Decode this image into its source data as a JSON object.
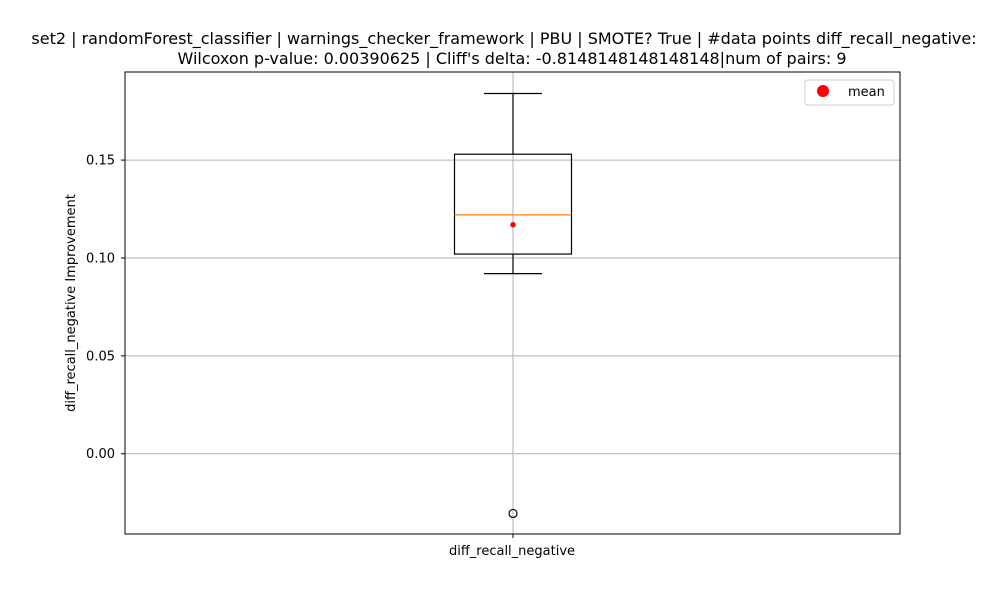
{
  "chart_data": {
    "type": "box",
    "title_lines": [
      "set2 | randomForest_classifier | warnings_checker_framework | PBU | SMOTE? True | #data points diff_recall_negative:",
      "Wilcoxon p-value: 0.00390625 | Cliff's delta: -0.8148148148148148|num of pairs: 9"
    ],
    "xlabel": "",
    "ylabel": "diff_recall_negative Improvement",
    "categories": [
      "diff_recall_negative"
    ],
    "ylim": [
      -0.041,
      0.195
    ],
    "yticks": [
      0.0,
      0.05,
      0.1,
      0.15
    ],
    "ytick_labels": [
      "0.00",
      "0.05",
      "0.10",
      "0.15"
    ],
    "grid": true,
    "legend": {
      "position": "top-right",
      "entries": [
        "mean"
      ]
    },
    "box": {
      "whisker_low": 0.092,
      "q1": 0.102,
      "median": 0.122,
      "q3": 0.153,
      "whisker_high": 0.184,
      "mean": 0.117,
      "outliers": [
        -0.0305
      ]
    },
    "colors": {
      "median": "#ff7f0e",
      "mean": "#ff0000",
      "grid": "#b0b0b0",
      "box": "#000000"
    }
  }
}
